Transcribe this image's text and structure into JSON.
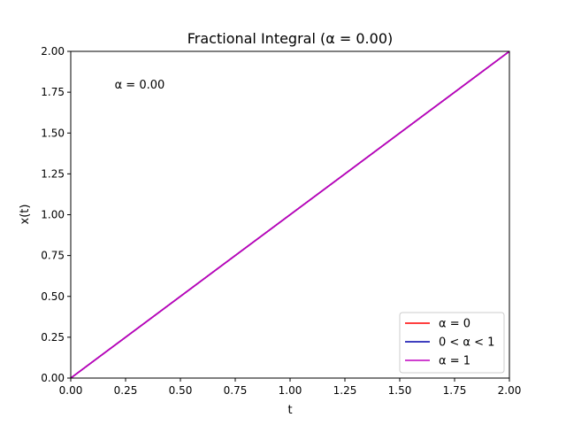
{
  "chart_data": {
    "type": "line",
    "title": "Fractional Integral (α = 0.00)",
    "xlabel": "t",
    "ylabel": "x(t)",
    "xlim": [
      0,
      2
    ],
    "ylim": [
      0,
      2
    ],
    "x_ticks": [
      "0.00",
      "0.25",
      "0.50",
      "0.75",
      "1.00",
      "1.25",
      "1.50",
      "1.75",
      "2.00"
    ],
    "y_ticks": [
      "0.00",
      "0.25",
      "0.50",
      "0.75",
      "1.00",
      "1.25",
      "1.50",
      "1.75",
      "2.00"
    ],
    "grid": false,
    "legend_position": "lower-right",
    "annotation": {
      "text": "α = 0.00",
      "x": 0.2,
      "y": 1.8
    },
    "series": [
      {
        "name": "α = 0",
        "color": "#ff0000",
        "x": [
          0,
          2
        ],
        "y": [
          0,
          2
        ]
      },
      {
        "name": "0 < α < 1",
        "color": "#0000aa",
        "x": [
          0,
          2
        ],
        "y": [
          0,
          2
        ]
      },
      {
        "name": "α = 1",
        "color": "#bf00bf",
        "x": [
          0,
          2
        ],
        "y": [
          0,
          2
        ]
      }
    ]
  }
}
